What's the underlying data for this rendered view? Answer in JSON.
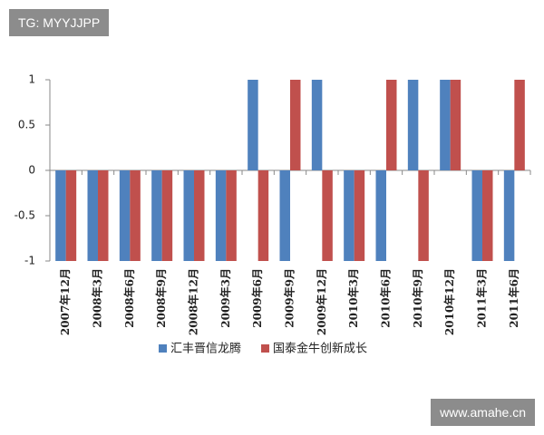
{
  "watermarks": {
    "top_left": "TG: MYYJJPP",
    "bottom_right": "www.amahe.cn"
  },
  "chart_data": {
    "type": "bar",
    "categories": [
      "2007年12月",
      "2008年3月",
      "2008年6月",
      "2008年9月",
      "2008年12月",
      "2009年3月",
      "2009年6月",
      "2009年9月",
      "2009年12月",
      "2010年3月",
      "2010年6月",
      "2010年9月",
      "2010年12月",
      "2011年3月",
      "2011年6月"
    ],
    "series": [
      {
        "name": "汇丰晋信龙腾",
        "color": "#4f81bd",
        "values": [
          -1,
          -1,
          -1,
          -1,
          -1,
          -1,
          1,
          -1,
          1,
          -1,
          -1,
          1,
          1,
          -1,
          -1
        ]
      },
      {
        "name": "国泰金牛创新成长",
        "color": "#c0504d",
        "values": [
          -1,
          -1,
          -1,
          -1,
          -1,
          -1,
          -1,
          1,
          -1,
          -1,
          1,
          -1,
          1,
          -1,
          1
        ]
      }
    ],
    "ylim": [
      -1,
      1
    ],
    "yticks": [
      1,
      0.5,
      0,
      -0.5,
      -1
    ],
    "grid": false,
    "legend": "bottom"
  }
}
